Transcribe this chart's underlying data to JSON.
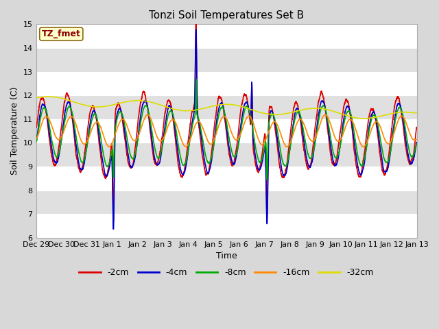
{
  "title": "Tonzi Soil Temperatures Set B",
  "xlabel": "Time",
  "ylabel": "Soil Temperature (C)",
  "ylim": [
    6.0,
    15.0
  ],
  "yticks": [
    6.0,
    7.0,
    8.0,
    9.0,
    10.0,
    11.0,
    12.0,
    13.0,
    14.0,
    15.0
  ],
  "fig_bg": "#d8d8d8",
  "plot_bg": "#e0e0e0",
  "grid_color": "#ffffff",
  "annotation_text": "TZ_fmet",
  "annotation_color": "#8b0000",
  "annotation_bg": "#ffffcc",
  "annotation_border": "#8b6914",
  "series": {
    "-2cm": {
      "color": "#dd0000",
      "lw": 1.2
    },
    "-4cm": {
      "color": "#0000cc",
      "lw": 1.2
    },
    "-8cm": {
      "color": "#00aa00",
      "lw": 1.2
    },
    "-16cm": {
      "color": "#ff8800",
      "lw": 1.2
    },
    "-32cm": {
      "color": "#dddd00",
      "lw": 1.2
    }
  },
  "legend_order": [
    "-2cm",
    "-4cm",
    "-8cm",
    "-16cm",
    "-32cm"
  ],
  "xtick_labels": [
    "Dec 29",
    "Dec 30",
    "Dec 31",
    "Jan 1",
    "Jan 2",
    "Jan 3",
    "Jan 4",
    "Jan 5",
    "Jan 6",
    "Jan 7",
    "Jan 8",
    "Jan 9",
    "Jan 10",
    "Jan 11",
    "Jan 12",
    "Jan 13"
  ]
}
